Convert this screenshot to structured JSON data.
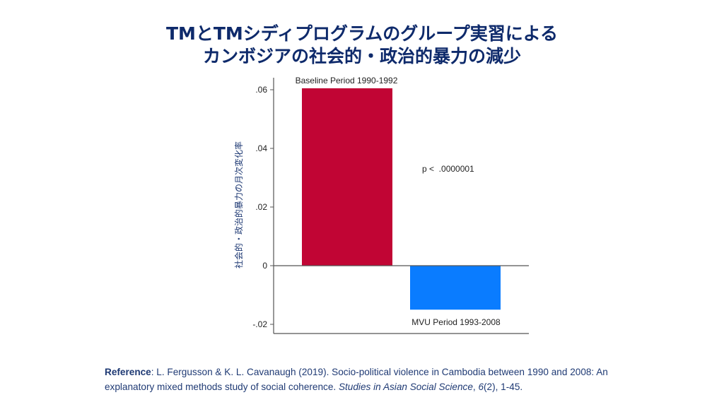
{
  "title": {
    "line1": "TMとTMシディプログラムのグループ実習による",
    "line2": "カンボジアの社会的・政治的暴力の減少"
  },
  "chart_data": {
    "type": "bar",
    "categories": [
      "Baseline Period 1990-1992",
      "MVU Period 1993-2008"
    ],
    "values": [
      0.0605,
      -0.015
    ],
    "colors": [
      "#c10534",
      "#0a7cff"
    ],
    "ylabel": "社会的・政治的暴力の月次変化率",
    "ylim": [
      -0.022,
      0.064
    ],
    "yticks": [
      0.06,
      0.04,
      0.02,
      0,
      -0.02
    ],
    "ytick_labels": [
      ".06",
      ".04",
      ".02",
      "0",
      "-.02"
    ],
    "annotation": "p <  .0000001",
    "grid": false
  },
  "reference": {
    "label": "Reference",
    "text1": ": L. Fergusson & K. L. Cavanaugh (2019). Socio-political violence in Cambodia between 1990 and 2008: An explanatory mixed methods study of social coherence. ",
    "journal": "Studies in Asian Social Science",
    "text2": ", ",
    "volume": "6",
    "text3": "(2), 1-45."
  }
}
